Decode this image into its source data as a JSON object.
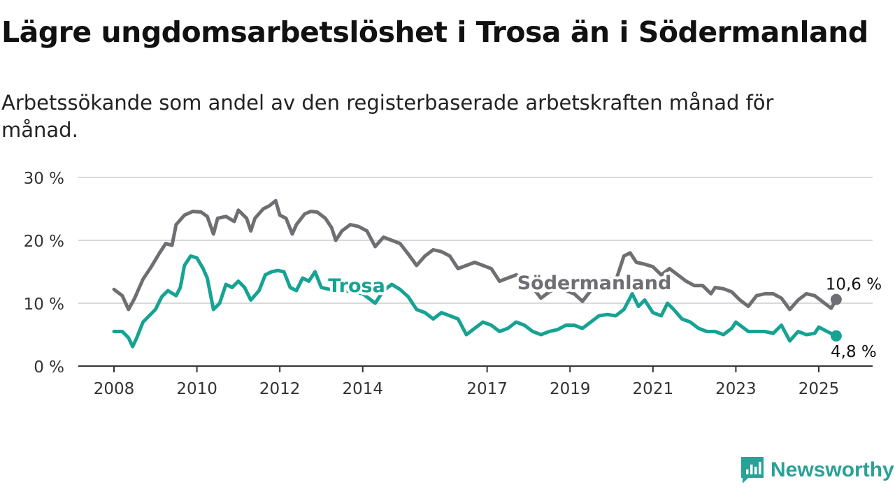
{
  "title": "Lägre ungdomsarbetslöshet i Trosa än i Södermanland",
  "subtitle": "Arbetssökande som andel av den registerbaserade arbetskraften månad för månad.",
  "brand": {
    "name": "Newsworthy",
    "color": "#2aa198"
  },
  "chart_data": {
    "type": "line",
    "y_ticks": [
      "0 %",
      "10 %",
      "20 %",
      "30 %"
    ],
    "y_tick_values": [
      0,
      10,
      20,
      30
    ],
    "ylim": [
      0,
      30
    ],
    "x_ticks": [
      "2008",
      "2010",
      "2012",
      "2014",
      "2017",
      "2019",
      "2021",
      "2023",
      "2025"
    ],
    "x_tick_values": [
      2008,
      2010,
      2012,
      2014,
      2017,
      2019,
      2021,
      2023,
      2025
    ],
    "xlim": [
      2008,
      2025.5
    ],
    "grid": true,
    "series": [
      {
        "name": "Södermanland",
        "color": "#6e6e73",
        "end_label": "10,6 %",
        "points": [
          [
            2008.0,
            12.2
          ],
          [
            2008.2,
            11.2
          ],
          [
            2008.35,
            9.0
          ],
          [
            2008.5,
            10.8
          ],
          [
            2008.7,
            13.8
          ],
          [
            2008.9,
            15.8
          ],
          [
            2009.1,
            18.0
          ],
          [
            2009.25,
            19.5
          ],
          [
            2009.4,
            19.2
          ],
          [
            2009.5,
            22.5
          ],
          [
            2009.7,
            24.0
          ],
          [
            2009.9,
            24.6
          ],
          [
            2010.1,
            24.5
          ],
          [
            2010.25,
            23.8
          ],
          [
            2010.4,
            21.0
          ],
          [
            2010.5,
            23.5
          ],
          [
            2010.7,
            23.8
          ],
          [
            2010.9,
            23.0
          ],
          [
            2011.0,
            24.8
          ],
          [
            2011.2,
            23.5
          ],
          [
            2011.3,
            21.5
          ],
          [
            2011.4,
            23.5
          ],
          [
            2011.6,
            25.0
          ],
          [
            2011.75,
            25.5
          ],
          [
            2011.9,
            26.3
          ],
          [
            2012.0,
            24.0
          ],
          [
            2012.15,
            23.5
          ],
          [
            2012.3,
            21.0
          ],
          [
            2012.4,
            22.5
          ],
          [
            2012.6,
            24.2
          ],
          [
            2012.75,
            24.6
          ],
          [
            2012.9,
            24.5
          ],
          [
            2013.1,
            23.5
          ],
          [
            2013.25,
            22.0
          ],
          [
            2013.35,
            20.0
          ],
          [
            2013.5,
            21.5
          ],
          [
            2013.7,
            22.5
          ],
          [
            2013.9,
            22.2
          ],
          [
            2014.1,
            21.5
          ],
          [
            2014.3,
            19.0
          ],
          [
            2014.5,
            20.5
          ],
          [
            2014.7,
            20.0
          ],
          [
            2014.9,
            19.5
          ],
          [
            2015.1,
            17.8
          ],
          [
            2015.3,
            16.0
          ],
          [
            2015.5,
            17.5
          ],
          [
            2015.7,
            18.5
          ],
          [
            2015.9,
            18.2
          ],
          [
            2016.1,
            17.5
          ],
          [
            2016.3,
            15.5
          ],
          [
            2016.5,
            16.0
          ],
          [
            2016.7,
            16.5
          ],
          [
            2016.9,
            16.0
          ],
          [
            2017.1,
            15.5
          ],
          [
            2017.3,
            13.5
          ],
          [
            2017.5,
            14.0
          ],
          [
            2017.7,
            14.5
          ],
          [
            2017.9,
            14.0
          ],
          [
            2018.1,
            12.5
          ],
          [
            2018.3,
            10.8
          ],
          [
            2018.5,
            11.8
          ],
          [
            2018.7,
            12.5
          ],
          [
            2018.9,
            12.0
          ],
          [
            2019.1,
            11.5
          ],
          [
            2019.3,
            10.3
          ],
          [
            2019.5,
            12.0
          ],
          [
            2019.7,
            13.5
          ],
          [
            2019.9,
            14.0
          ],
          [
            2020.1,
            13.5
          ],
          [
            2020.3,
            17.5
          ],
          [
            2020.45,
            18.0
          ],
          [
            2020.6,
            16.5
          ],
          [
            2020.8,
            16.2
          ],
          [
            2021.0,
            15.8
          ],
          [
            2021.2,
            14.5
          ],
          [
            2021.4,
            15.5
          ],
          [
            2021.6,
            14.5
          ],
          [
            2021.8,
            13.5
          ],
          [
            2022.0,
            12.8
          ],
          [
            2022.2,
            12.8
          ],
          [
            2022.4,
            11.5
          ],
          [
            2022.5,
            12.5
          ],
          [
            2022.7,
            12.3
          ],
          [
            2022.9,
            11.8
          ],
          [
            2023.1,
            10.5
          ],
          [
            2023.3,
            9.5
          ],
          [
            2023.5,
            11.2
          ],
          [
            2023.7,
            11.5
          ],
          [
            2023.9,
            11.5
          ],
          [
            2024.1,
            10.8
          ],
          [
            2024.3,
            9.0
          ],
          [
            2024.5,
            10.5
          ],
          [
            2024.7,
            11.5
          ],
          [
            2024.9,
            11.2
          ],
          [
            2025.1,
            10.2
          ],
          [
            2025.3,
            9.2
          ],
          [
            2025.42,
            10.6
          ]
        ]
      },
      {
        "name": "Trosa",
        "color": "#16a393",
        "end_label": "4,8 %",
        "points": [
          [
            2008.0,
            5.5
          ],
          [
            2008.2,
            5.5
          ],
          [
            2008.35,
            4.5
          ],
          [
            2008.45,
            3.1
          ],
          [
            2008.55,
            4.5
          ],
          [
            2008.7,
            7.0
          ],
          [
            2008.85,
            8.0
          ],
          [
            2009.0,
            9.0
          ],
          [
            2009.15,
            11.0
          ],
          [
            2009.3,
            12.0
          ],
          [
            2009.5,
            11.2
          ],
          [
            2009.6,
            12.5
          ],
          [
            2009.7,
            16.0
          ],
          [
            2009.85,
            17.5
          ],
          [
            2010.0,
            17.2
          ],
          [
            2010.15,
            15.5
          ],
          [
            2010.25,
            14.0
          ],
          [
            2010.4,
            9.0
          ],
          [
            2010.55,
            10.0
          ],
          [
            2010.7,
            13.0
          ],
          [
            2010.85,
            12.5
          ],
          [
            2011.0,
            13.5
          ],
          [
            2011.15,
            12.5
          ],
          [
            2011.3,
            10.5
          ],
          [
            2011.5,
            12.0
          ],
          [
            2011.65,
            14.5
          ],
          [
            2011.8,
            15.0
          ],
          [
            2011.95,
            15.2
          ],
          [
            2012.1,
            15.0
          ],
          [
            2012.25,
            12.5
          ],
          [
            2012.4,
            12.0
          ],
          [
            2012.55,
            14.0
          ],
          [
            2012.7,
            13.5
          ],
          [
            2012.85,
            15.0
          ],
          [
            2013.0,
            12.5
          ],
          [
            2013.2,
            12.2
          ],
          [
            2013.5,
            12.0
          ],
          [
            2013.8,
            11.8
          ],
          [
            2014.0,
            11.5
          ],
          [
            2014.3,
            10.0
          ],
          [
            2014.5,
            12.0
          ],
          [
            2014.7,
            13.0
          ],
          [
            2014.9,
            12.2
          ],
          [
            2015.1,
            11.0
          ],
          [
            2015.3,
            9.0
          ],
          [
            2015.5,
            8.5
          ],
          [
            2015.7,
            7.5
          ],
          [
            2015.9,
            8.5
          ],
          [
            2016.1,
            8.0
          ],
          [
            2016.3,
            7.5
          ],
          [
            2016.5,
            5.0
          ],
          [
            2016.7,
            6.0
          ],
          [
            2016.9,
            7.0
          ],
          [
            2017.1,
            6.5
          ],
          [
            2017.3,
            5.5
          ],
          [
            2017.5,
            6.0
          ],
          [
            2017.7,
            7.0
          ],
          [
            2017.9,
            6.5
          ],
          [
            2018.1,
            5.5
          ],
          [
            2018.3,
            5.0
          ],
          [
            2018.5,
            5.5
          ],
          [
            2018.7,
            5.8
          ],
          [
            2018.9,
            6.5
          ],
          [
            2019.1,
            6.5
          ],
          [
            2019.3,
            6.0
          ],
          [
            2019.5,
            7.0
          ],
          [
            2019.7,
            8.0
          ],
          [
            2019.9,
            8.2
          ],
          [
            2020.1,
            8.0
          ],
          [
            2020.3,
            9.0
          ],
          [
            2020.5,
            11.5
          ],
          [
            2020.65,
            9.5
          ],
          [
            2020.8,
            10.5
          ],
          [
            2021.0,
            8.5
          ],
          [
            2021.2,
            8.0
          ],
          [
            2021.35,
            10.0
          ],
          [
            2021.5,
            9.0
          ],
          [
            2021.7,
            7.5
          ],
          [
            2021.9,
            7.0
          ],
          [
            2022.1,
            6.0
          ],
          [
            2022.3,
            5.5
          ],
          [
            2022.5,
            5.5
          ],
          [
            2022.7,
            5.0
          ],
          [
            2022.9,
            6.0
          ],
          [
            2023.0,
            7.0
          ],
          [
            2023.1,
            6.5
          ],
          [
            2023.3,
            5.5
          ],
          [
            2023.5,
            5.5
          ],
          [
            2023.7,
            5.5
          ],
          [
            2023.9,
            5.2
          ],
          [
            2024.1,
            6.5
          ],
          [
            2024.3,
            4.0
          ],
          [
            2024.5,
            5.5
          ],
          [
            2024.7,
            5.0
          ],
          [
            2024.9,
            5.2
          ],
          [
            2025.0,
            6.2
          ],
          [
            2025.2,
            5.5
          ],
          [
            2025.42,
            4.8
          ]
        ]
      }
    ]
  }
}
